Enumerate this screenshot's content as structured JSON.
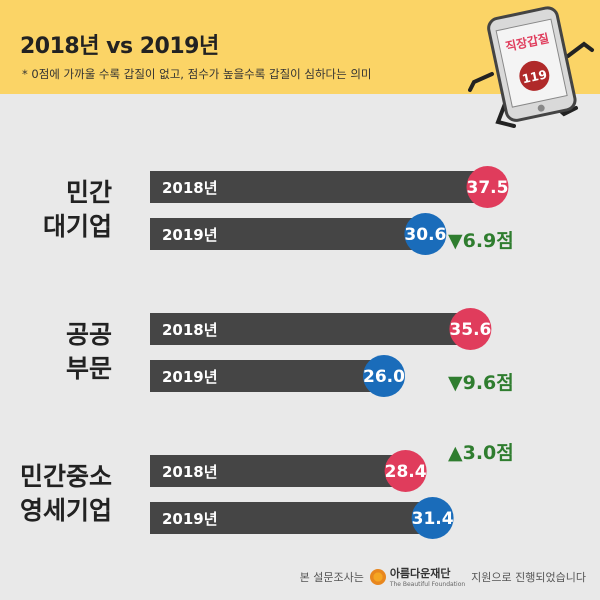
{
  "header": {
    "title": "2018년 vs 2019년",
    "subtitle": "* 0점에 가까울 수록 갑질이 없고, 점수가 높을수록 갑질이 심하다는 의미",
    "illustration": {
      "screen_text": "직장갑질",
      "badge_text": "119"
    }
  },
  "footer": {
    "prefix": "본 설문조사는",
    "logo_name": "아름다운재단",
    "logo_sub": "The Beautiful Foundation",
    "suffix": "지원으로 진행되었습니다"
  },
  "colors": {
    "bar": "#454545",
    "badge_2018": "#e03c5c",
    "badge_2019": "#1a6cba",
    "change_text": "#2f7d2f",
    "group_label": "#222222",
    "header_bg": "#fbd466",
    "page_bg": "#e9e9e9"
  },
  "chart_data": {
    "type": "bar",
    "orientation": "horizontal",
    "series_labels": [
      "2018년",
      "2019년"
    ],
    "groups": [
      {
        "label": [
          "민간",
          "대기업"
        ],
        "values": [
          37.5,
          30.6
        ],
        "value_labels": [
          "37.5",
          "30.6"
        ],
        "change": "▼6.9점",
        "change_direction": "down"
      },
      {
        "label": [
          "공공",
          "부문"
        ],
        "values": [
          35.6,
          26.0
        ],
        "value_labels": [
          "35.6",
          "26.0"
        ],
        "change": "▼9.6점",
        "change_direction": "down"
      },
      {
        "label": [
          "민간중소",
          "영세기업"
        ],
        "values": [
          28.4,
          31.4
        ],
        "value_labels": [
          "28.4",
          "31.4"
        ],
        "change": "▲3.0점",
        "change_direction": "up"
      }
    ]
  }
}
